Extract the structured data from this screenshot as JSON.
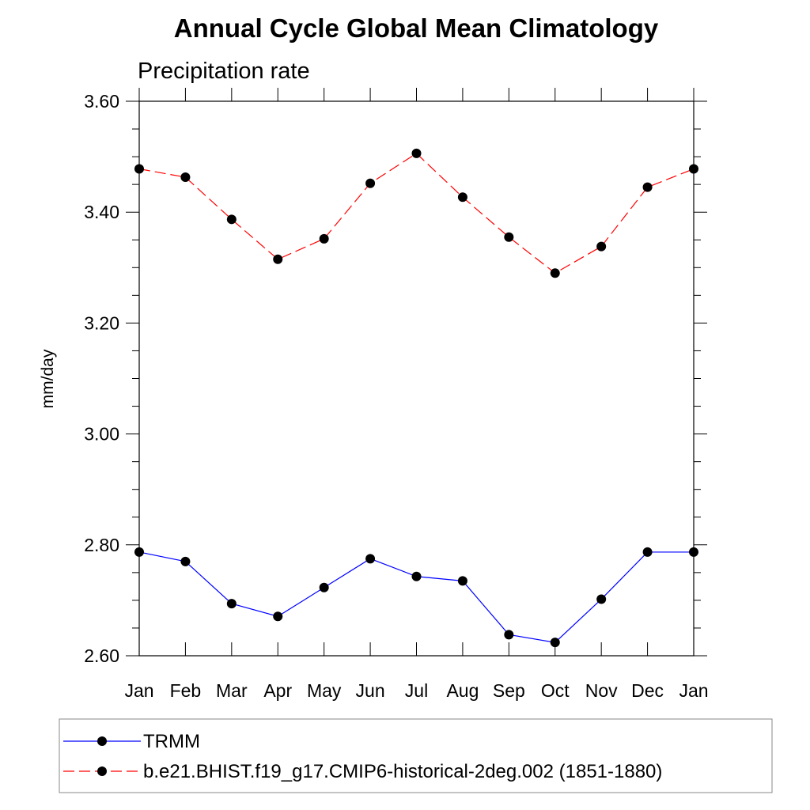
{
  "chart_data": {
    "type": "line",
    "title": "Annual Cycle Global Mean Climatology",
    "subtitle": "Precipitation rate",
    "xlabel": "",
    "ylabel": "mm/day",
    "categories": [
      "Jan",
      "Feb",
      "Mar",
      "Apr",
      "May",
      "Jun",
      "Jul",
      "Aug",
      "Sep",
      "Oct",
      "Nov",
      "Dec",
      "Jan"
    ],
    "ylim": [
      2.6,
      3.6
    ],
    "yticks": [
      "2.60",
      "2.80",
      "3.00",
      "3.20",
      "3.40",
      "3.60"
    ],
    "grid": false,
    "legend": "bottom",
    "series": [
      {
        "name": "TRMM",
        "color": "#0000ff",
        "dash": "solid",
        "marker": "filled-circle",
        "values": [
          2.787,
          2.77,
          2.694,
          2.671,
          2.723,
          2.775,
          2.743,
          2.735,
          2.638,
          2.624,
          2.702,
          2.787,
          2.787
        ]
      },
      {
        "name": "b.e21.BHIST.f19_g17.CMIP6-historical-2deg.002 (1851-1880)",
        "color": "#ff0000",
        "dash": "dashed",
        "marker": "filled-circle",
        "values": [
          3.478,
          3.463,
          3.387,
          3.315,
          3.352,
          3.452,
          3.506,
          3.427,
          3.355,
          3.29,
          3.338,
          3.445,
          3.478
        ]
      }
    ]
  }
}
